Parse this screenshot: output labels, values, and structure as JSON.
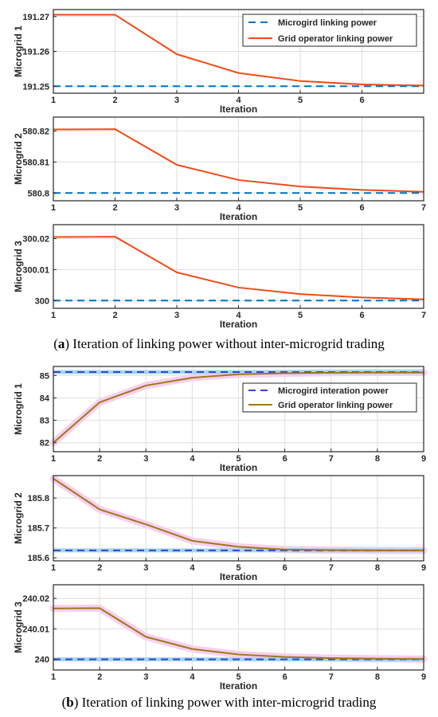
{
  "captions": {
    "a_letter": "a",
    "a_text": " Iteration of linking power without inter-microgrid trading",
    "b_letter": "b",
    "b_text": " Iteration of linking power with inter-microgrid trading"
  },
  "colors": {
    "a_dashed": "#0072BD",
    "a_solid": "#F04A16",
    "b_dashed": "#4040C8",
    "b_solid": "#A07818",
    "b_glow": "#F6D0F0"
  },
  "chart_data": [
    {
      "type": "line",
      "panel": "a",
      "ylabel": "Microgrid 1",
      "xlabel": "Iteration",
      "xlim": [
        1,
        7
      ],
      "ylim": [
        191.248,
        191.272
      ],
      "xticks": [
        "1",
        "2",
        "3",
        "4",
        "5",
        "6"
      ],
      "xtick_values": [
        1,
        2,
        3,
        4,
        5,
        6
      ],
      "yticks": [
        "191.25",
        "191.26",
        "191.27"
      ],
      "ytick_values": [
        191.25,
        191.26,
        191.27
      ],
      "grid": true,
      "legend": "top-right",
      "series": [
        {
          "name": "Microgird linking power",
          "style": "dashed",
          "x": [
            1,
            2,
            3,
            4,
            5,
            6,
            7
          ],
          "y": [
            191.25,
            191.25,
            191.25,
            191.25,
            191.25,
            191.25,
            191.25
          ]
        },
        {
          "name": "Grid operator linking power",
          "style": "solid",
          "x": [
            1,
            2,
            3,
            4,
            5,
            6,
            7
          ],
          "y": [
            191.2705,
            191.2705,
            191.2592,
            191.2538,
            191.2515,
            191.2505,
            191.2502
          ]
        }
      ]
    },
    {
      "type": "line",
      "panel": "a",
      "ylabel": "Microgrid 2",
      "xlabel": "Iteration",
      "xlim": [
        1,
        7
      ],
      "ylim": [
        580.7975,
        580.8245
      ],
      "xticks": [
        "1",
        "2",
        "3",
        "4",
        "5",
        "6",
        "7"
      ],
      "xtick_values": [
        1,
        2,
        3,
        4,
        5,
        6,
        7
      ],
      "yticks": [
        "580.8",
        "580.81",
        "580.82"
      ],
      "ytick_values": [
        580.8,
        580.81,
        580.82
      ],
      "grid": true,
      "legend": "none",
      "series": [
        {
          "name": "",
          "style": "dashed",
          "x": [
            1,
            2,
            3,
            4,
            5,
            6,
            7
          ],
          "y": [
            580.8,
            580.8,
            580.8,
            580.8,
            580.8,
            580.8,
            580.8
          ]
        },
        {
          "name": "",
          "style": "solid",
          "x": [
            1,
            2,
            3,
            4,
            5,
            6,
            7
          ],
          "y": [
            580.8205,
            580.8206,
            580.8091,
            580.8042,
            580.8021,
            580.801,
            580.8004
          ]
        }
      ]
    },
    {
      "type": "line",
      "panel": "a",
      "ylabel": "Microgrid 3",
      "xlabel": "Iteration",
      "xlim": [
        1,
        7
      ],
      "ylim": [
        299.9975,
        300.0245
      ],
      "xticks": [
        "1",
        "2",
        "3",
        "4",
        "5",
        "6",
        "7"
      ],
      "xtick_values": [
        1,
        2,
        3,
        4,
        5,
        6,
        7
      ],
      "yticks": [
        "300",
        "300.01",
        "300.02"
      ],
      "ytick_values": [
        300,
        300.01,
        300.02
      ],
      "grid": true,
      "legend": "none",
      "series": [
        {
          "name": "",
          "style": "dashed",
          "x": [
            1,
            2,
            3,
            4,
            5,
            6,
            7
          ],
          "y": [
            300,
            300,
            300,
            300,
            300,
            300,
            300
          ]
        },
        {
          "name": "",
          "style": "solid",
          "x": [
            1,
            2,
            3,
            4,
            5,
            6,
            7
          ],
          "y": [
            300.0205,
            300.0206,
            300.0091,
            300.0042,
            300.0021,
            300.001,
            300.0004
          ]
        }
      ]
    },
    {
      "type": "line",
      "panel": "b",
      "ylabel": "Microgrid 1",
      "xlabel": "Iteration",
      "xlim": [
        1,
        9
      ],
      "ylim": [
        81.6,
        85.4
      ],
      "xticks": [
        "1",
        "2",
        "3",
        "4",
        "5",
        "6",
        "7",
        "8",
        "9"
      ],
      "xtick_values": [
        1,
        2,
        3,
        4,
        5,
        6,
        7,
        8,
        9
      ],
      "yticks": [
        "82",
        "83",
        "84",
        "85"
      ],
      "ytick_values": [
        82,
        83,
        84,
        85
      ],
      "grid": true,
      "legend": "right",
      "series": [
        {
          "name": "Microgird interation power",
          "style": "dashed",
          "x": [
            1,
            2,
            3,
            4,
            5,
            6,
            7,
            8,
            9
          ],
          "y": [
            85.15,
            85.15,
            85.15,
            85.15,
            85.15,
            85.15,
            85.15,
            85.15,
            85.15
          ]
        },
        {
          "name": "Grid operator linking power",
          "style": "solid",
          "x": [
            1,
            2,
            3,
            4,
            5,
            6,
            7,
            8,
            9
          ],
          "y": [
            82.0,
            83.8,
            84.55,
            84.9,
            85.05,
            85.1,
            85.12,
            85.13,
            85.13
          ]
        }
      ]
    },
    {
      "type": "line",
      "panel": "b",
      "ylabel": "Microgrid 2",
      "xlabel": "Iteration",
      "xlim": [
        1,
        9
      ],
      "ylim": [
        185.59,
        185.875
      ],
      "xticks": [
        "1",
        "2",
        "3",
        "4",
        "5",
        "6",
        "7",
        "8",
        "9"
      ],
      "xtick_values": [
        1,
        2,
        3,
        4,
        5,
        6,
        7,
        8,
        9
      ],
      "yticks": [
        "185.6",
        "185.7",
        "185.8"
      ],
      "ytick_values": [
        185.6,
        185.7,
        185.8
      ],
      "grid": true,
      "legend": "none",
      "series": [
        {
          "name": "",
          "style": "dashed",
          "x": [
            1,
            2,
            3,
            4,
            5,
            6,
            7,
            8,
            9
          ],
          "y": [
            185.625,
            185.625,
            185.625,
            185.625,
            185.625,
            185.625,
            185.625,
            185.625,
            185.625
          ]
        },
        {
          "name": "",
          "style": "solid",
          "x": [
            1,
            2,
            3,
            4,
            5,
            6,
            7,
            8,
            9
          ],
          "y": [
            185.865,
            185.762,
            185.712,
            185.657,
            185.637,
            185.628,
            185.626,
            185.625,
            185.625
          ]
        }
      ]
    },
    {
      "type": "line",
      "panel": "b",
      "ylabel": "Microgrid 3",
      "xlabel": "Iteration",
      "xlim": [
        1,
        9
      ],
      "ylim": [
        239.9965,
        240.0245
      ],
      "xticks": [
        "1",
        "2",
        "3",
        "4",
        "5",
        "6",
        "7",
        "8",
        "9"
      ],
      "xtick_values": [
        1,
        2,
        3,
        4,
        5,
        6,
        7,
        8,
        9
      ],
      "yticks": [
        "240",
        "240.01",
        "240.02"
      ],
      "ytick_values": [
        240,
        240.01,
        240.02
      ],
      "grid": true,
      "legend": "none",
      "series": [
        {
          "name": "",
          "style": "dashed",
          "x": [
            1,
            2,
            3,
            4,
            5,
            6,
            7,
            8,
            9
          ],
          "y": [
            240,
            240,
            240,
            240,
            240,
            240,
            240,
            240,
            240
          ]
        },
        {
          "name": "",
          "style": "solid",
          "x": [
            1,
            2,
            3,
            4,
            5,
            6,
            7,
            8,
            9
          ],
          "y": [
            240.0167,
            240.0168,
            240.0074,
            240.0034,
            240.0016,
            240.0008,
            240.0004,
            240.0002,
            240.0001
          ]
        }
      ]
    }
  ]
}
